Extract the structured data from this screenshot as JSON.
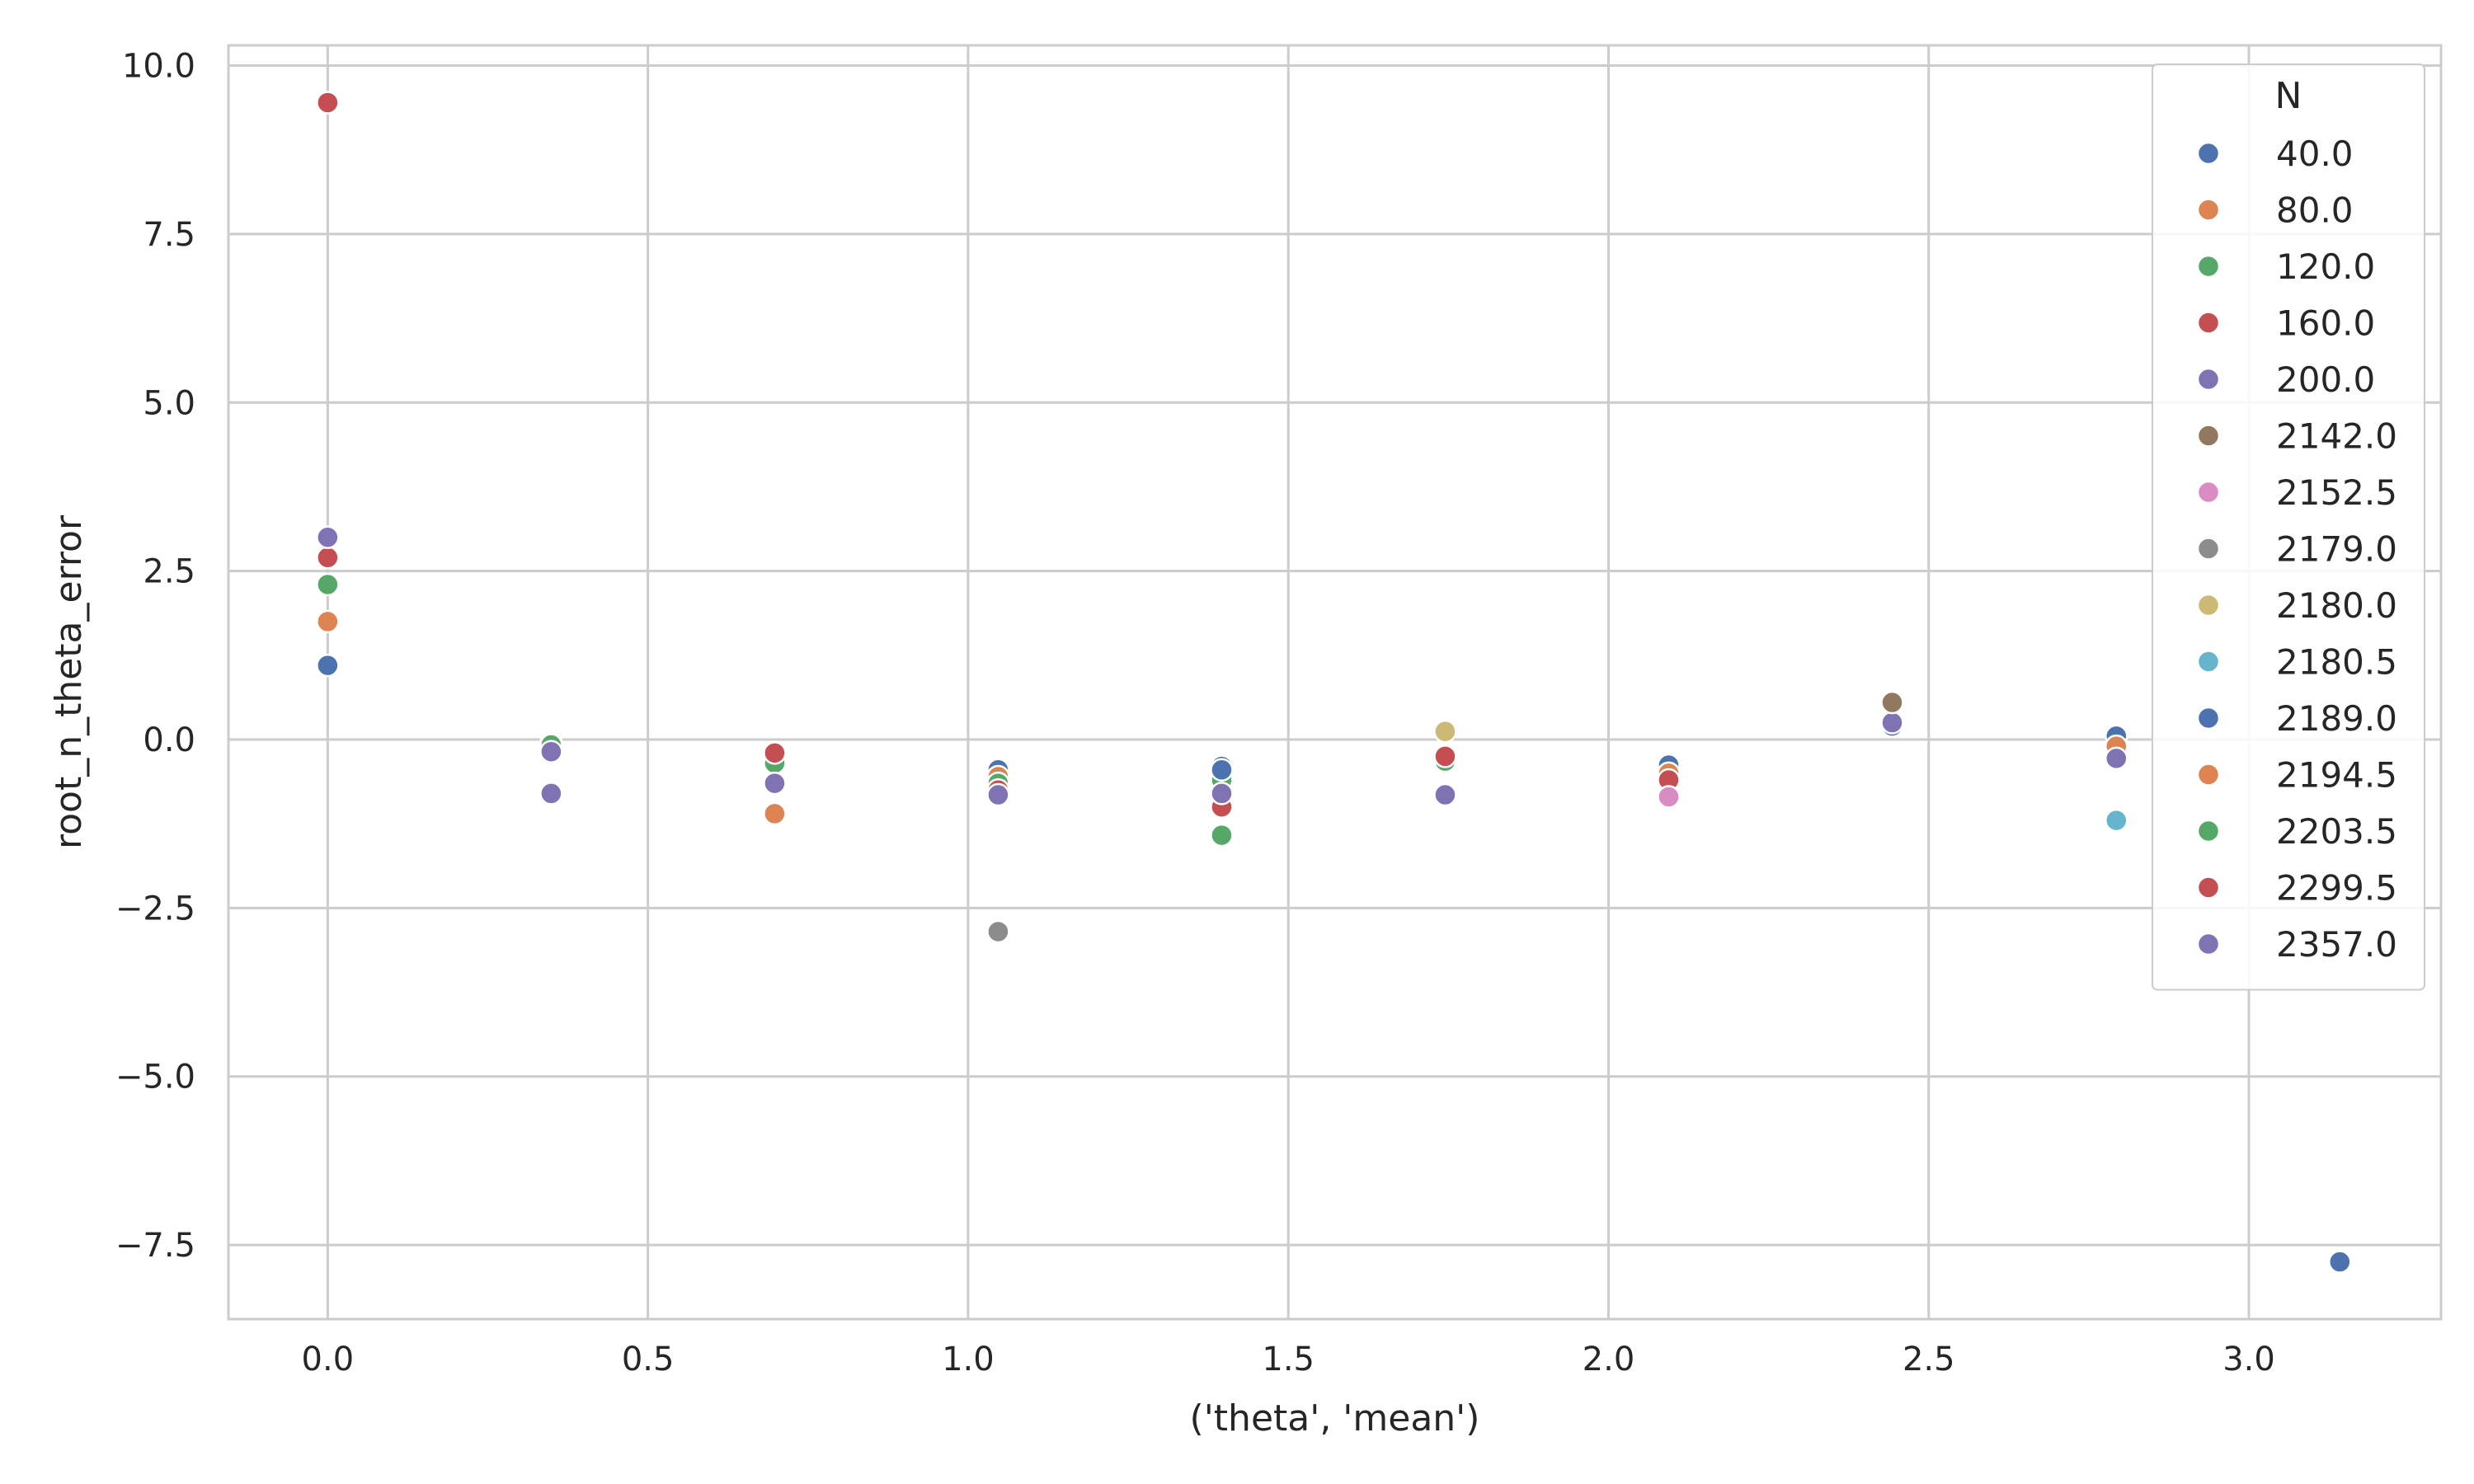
{
  "chart_data": {
    "type": "scatter",
    "xlabel": "('theta', 'mean')",
    "ylabel": "root_n_theta_error",
    "xlim": [
      -0.155,
      3.3
    ],
    "ylim": [
      -8.6,
      10.3
    ],
    "xticks": [
      0.0,
      0.5,
      1.0,
      1.5,
      2.0,
      2.5,
      3.0
    ],
    "xtick_labels": [
      "0.0",
      "0.5",
      "1.0",
      "1.5",
      "2.0",
      "2.5",
      "3.0"
    ],
    "yticks": [
      -7.5,
      -5.0,
      -2.5,
      0.0,
      2.5,
      5.0,
      7.5,
      10.0
    ],
    "ytick_labels": [
      "−7.5",
      "−5.0",
      "−2.5",
      "0.0",
      "2.5",
      "5.0",
      "7.5",
      "10.0"
    ],
    "grid": true,
    "legend": {
      "title": "N",
      "placement": "top-right"
    },
    "series": [
      {
        "name": "40.0",
        "color": "#4c72b0",
        "points": [
          [
            0.0,
            1.1
          ],
          [
            0.349,
            -0.05
          ],
          [
            0.698,
            -0.3
          ],
          [
            1.047,
            -0.45
          ],
          [
            1.396,
            -0.4
          ],
          [
            1.745,
            -0.35
          ],
          [
            2.094,
            -0.38
          ],
          [
            2.443,
            0.2
          ],
          [
            2.793,
            0.05
          ],
          [
            3.142,
            -7.75
          ]
        ]
      },
      {
        "name": "80.0",
        "color": "#dd8452",
        "points": [
          [
            0.0,
            1.75
          ],
          [
            0.698,
            -1.1
          ],
          [
            1.047,
            -0.55
          ],
          [
            1.396,
            -0.5
          ],
          [
            2.094,
            -0.5
          ]
        ]
      },
      {
        "name": "120.0",
        "color": "#55a868",
        "points": [
          [
            0.0,
            2.3
          ],
          [
            0.349,
            -0.08
          ],
          [
            0.698,
            -0.35
          ],
          [
            1.047,
            -0.65
          ],
          [
            1.396,
            -0.6
          ],
          [
            1.745,
            -0.32
          ]
        ]
      },
      {
        "name": "160.0",
        "color": "#c44e52",
        "points": [
          [
            0.0,
            2.7
          ],
          [
            0.698,
            -0.2
          ],
          [
            1.047,
            -0.75
          ],
          [
            1.396,
            -1.0
          ],
          [
            1.745,
            -0.25
          ],
          [
            2.094,
            -0.6
          ],
          [
            2.793,
            -0.15
          ]
        ]
      },
      {
        "name": "200.0",
        "color": "#8172b3",
        "points": [
          [
            0.0,
            3.0
          ],
          [
            0.349,
            -0.8
          ],
          [
            0.698,
            -0.65
          ],
          [
            1.047,
            -0.82
          ],
          [
            1.396,
            -0.8
          ],
          [
            1.745,
            -0.82
          ],
          [
            2.443,
            0.25
          ]
        ]
      },
      {
        "name": "2142.0",
        "color": "#937860",
        "points": [
          [
            2.443,
            0.55
          ]
        ]
      },
      {
        "name": "2152.5",
        "color": "#da8bc3",
        "points": [
          [
            2.094,
            -0.85
          ]
        ]
      },
      {
        "name": "2179.0",
        "color": "#8c8c8c",
        "points": [
          [
            1.047,
            -2.85
          ]
        ]
      },
      {
        "name": "2180.0",
        "color": "#ccb974",
        "points": [
          [
            1.745,
            0.12
          ]
        ]
      },
      {
        "name": "2180.5",
        "color": "#64b5cd",
        "points": [
          [
            2.793,
            -1.2
          ]
        ]
      },
      {
        "name": "2189.0",
        "color": "#4c72b0",
        "points": [
          [
            1.396,
            -0.45
          ]
        ]
      },
      {
        "name": "2194.5",
        "color": "#dd8452",
        "points": [
          [
            2.793,
            -0.1
          ]
        ]
      },
      {
        "name": "2203.5",
        "color": "#55a868",
        "points": [
          [
            1.396,
            -1.42
          ]
        ]
      },
      {
        "name": "2299.5",
        "color": "#c44e52",
        "points": [
          [
            0.0,
            9.45
          ]
        ]
      },
      {
        "name": "2357.0",
        "color": "#8172b3",
        "points": [
          [
            0.349,
            -0.18
          ],
          [
            2.793,
            -0.28
          ]
        ]
      }
    ]
  }
}
